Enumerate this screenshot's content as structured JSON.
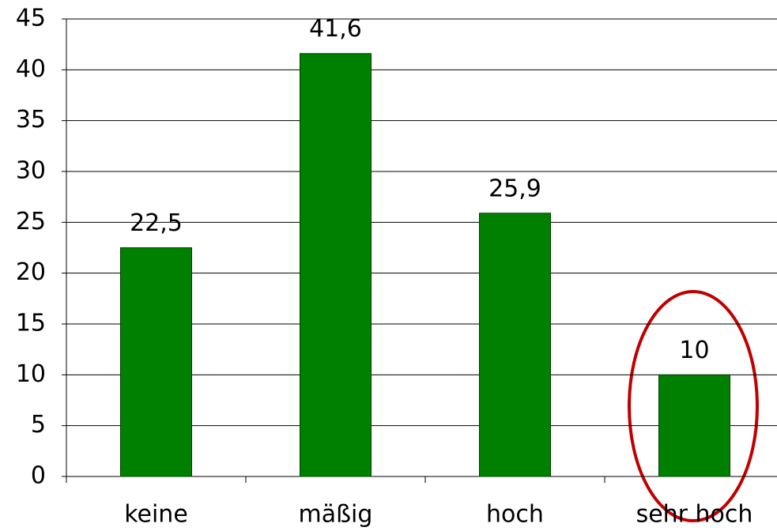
{
  "chart_data": {
    "type": "bar",
    "categories": [
      "keine",
      "mäßig",
      "hoch",
      "sehr hoch"
    ],
    "values": [
      22.5,
      41.6,
      25.9,
      10
    ],
    "value_labels": [
      "22,5",
      "41,6",
      "25,9",
      "10"
    ],
    "color": "#008000",
    "ylim": [
      0,
      45
    ],
    "yticks": [
      0,
      5,
      10,
      15,
      20,
      25,
      30,
      35,
      40,
      45
    ],
    "grid": true
  }
}
